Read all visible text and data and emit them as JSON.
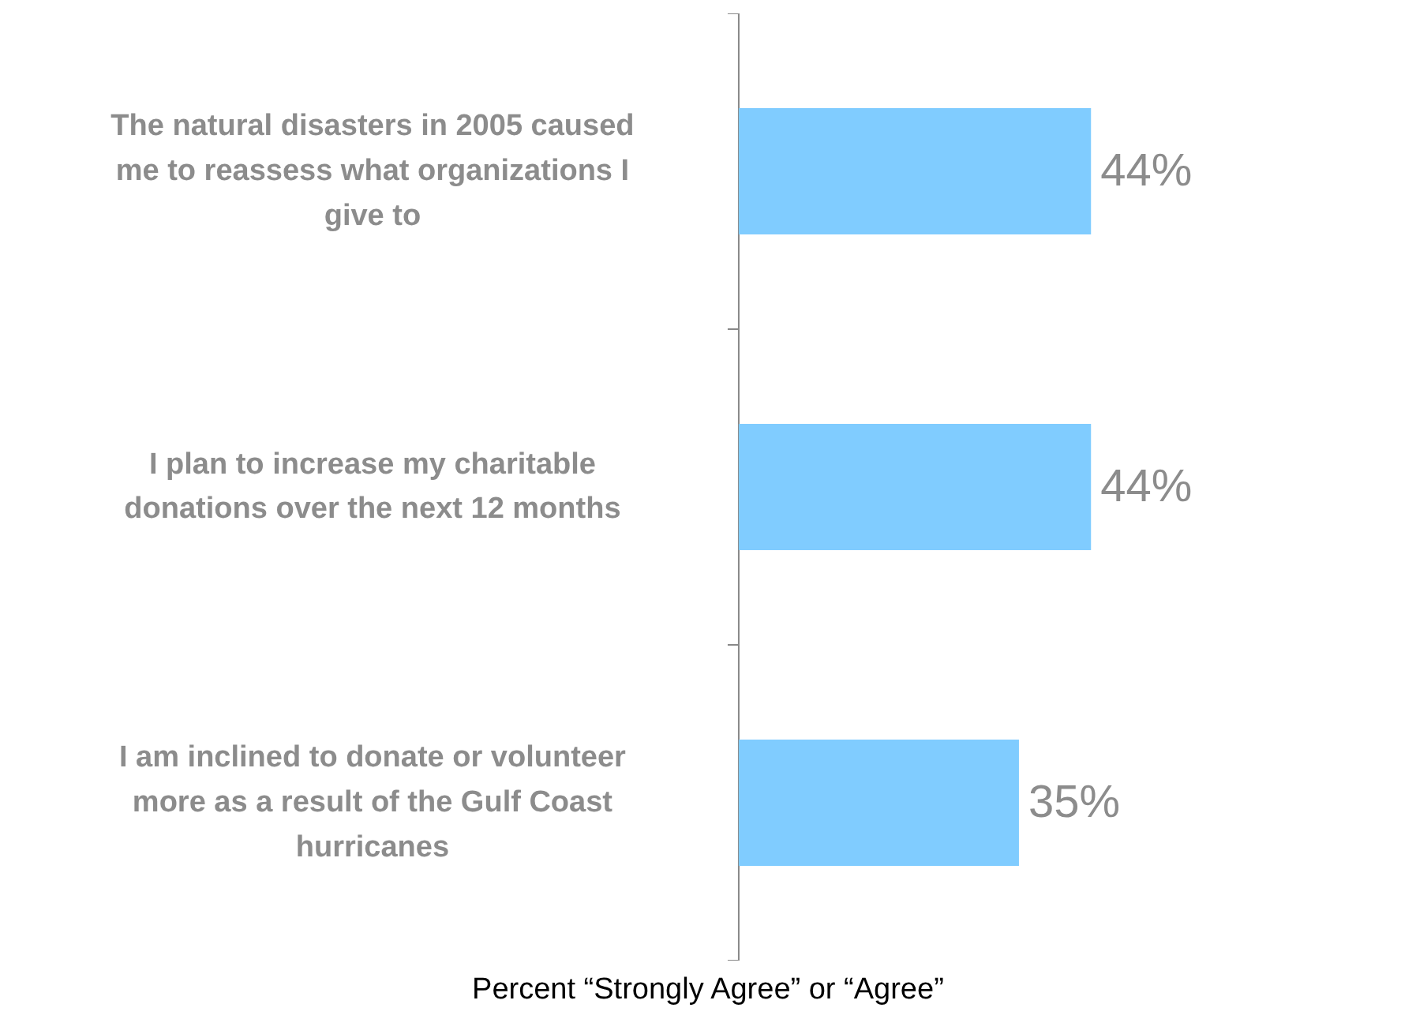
{
  "chart_data": {
    "type": "bar",
    "orientation": "horizontal",
    "categories": [
      "The natural disasters in 2005 caused me to reassess what organizations I give to",
      "I plan to increase my charitable donations over the next 12 months",
      "I am inclined to donate or volunteer more as a result of the Gulf Coast hurricanes"
    ],
    "values": [
      44,
      44,
      35
    ],
    "value_labels": [
      "44%",
      "44%",
      "35%"
    ],
    "color": "#80ccff",
    "xlabel": "Percent “Strongly Agree” or “Agree”"
  }
}
